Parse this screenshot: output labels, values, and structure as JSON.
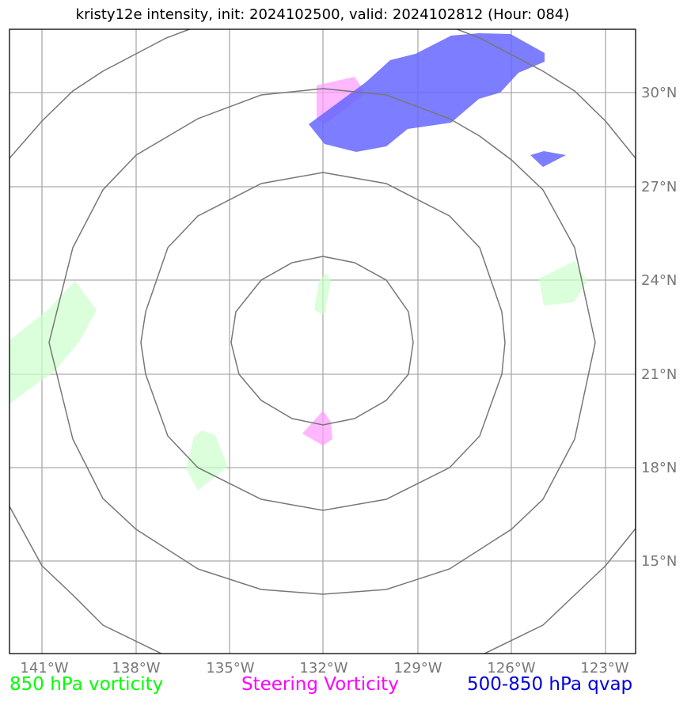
{
  "title": "kristy12e intensity, init: 2024102500, valid: 2024102812 (Hour: 084)",
  "colors": {
    "vort850": "#00ff00",
    "vort850_fill": "#ccffcc",
    "steering": "#ff00ff",
    "steering_fill": "#ff99ff",
    "qvap": "#0000dd",
    "qvap_fill": "#6666ff",
    "grid": "#aaaaaa",
    "rings": "#777777"
  },
  "lon_labels": [
    "141°W",
    "138°W",
    "135°W",
    "132°W",
    "129°W",
    "126°W",
    "123°W"
  ],
  "lat_labels": [
    "30°N",
    "27°N",
    "24°N",
    "21°N",
    "18°N",
    "15°N"
  ],
  "legend": {
    "vort850": "850 hPa vorticity",
    "steering": "Steering Vorticity",
    "qvap": "500-850 hPa qvap"
  },
  "map": {
    "center": {
      "lon": "132°W",
      "lat": "21.3°N"
    },
    "range_rings": 4
  }
}
